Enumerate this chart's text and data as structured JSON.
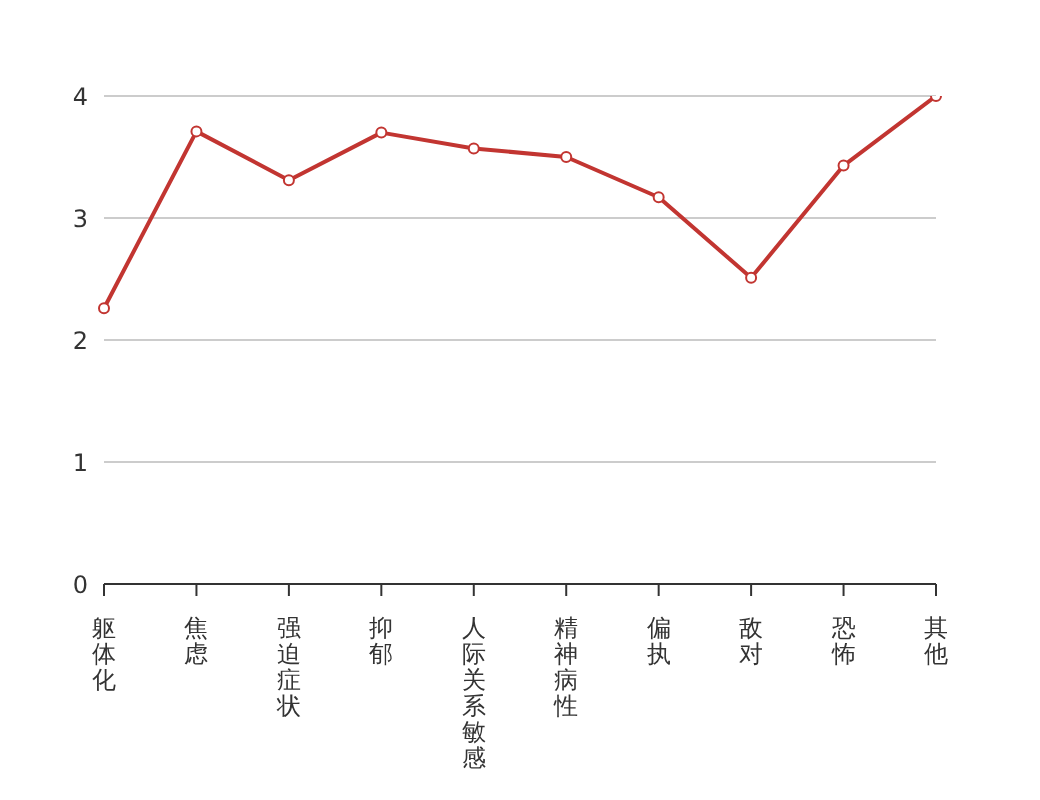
{
  "chart_data": {
    "type": "line",
    "categories": [
      "躯体化",
      "焦虑",
      "强迫症状",
      "抑郁",
      "人际关系敏感",
      "精神病性",
      "偏执",
      "敌对",
      "恐怖",
      "其他"
    ],
    "series": [
      {
        "color": "#c23531",
        "values": [
          2.26,
          3.71,
          3.31,
          3.7,
          3.57,
          3.5,
          3.17,
          2.51,
          3.43,
          4.0
        ]
      }
    ],
    "ylim": [
      0,
      4
    ],
    "yticks": [
      0,
      1,
      2,
      3,
      4
    ],
    "grid": "y",
    "legend": false,
    "marker": "circle",
    "line_style": "solid"
  }
}
